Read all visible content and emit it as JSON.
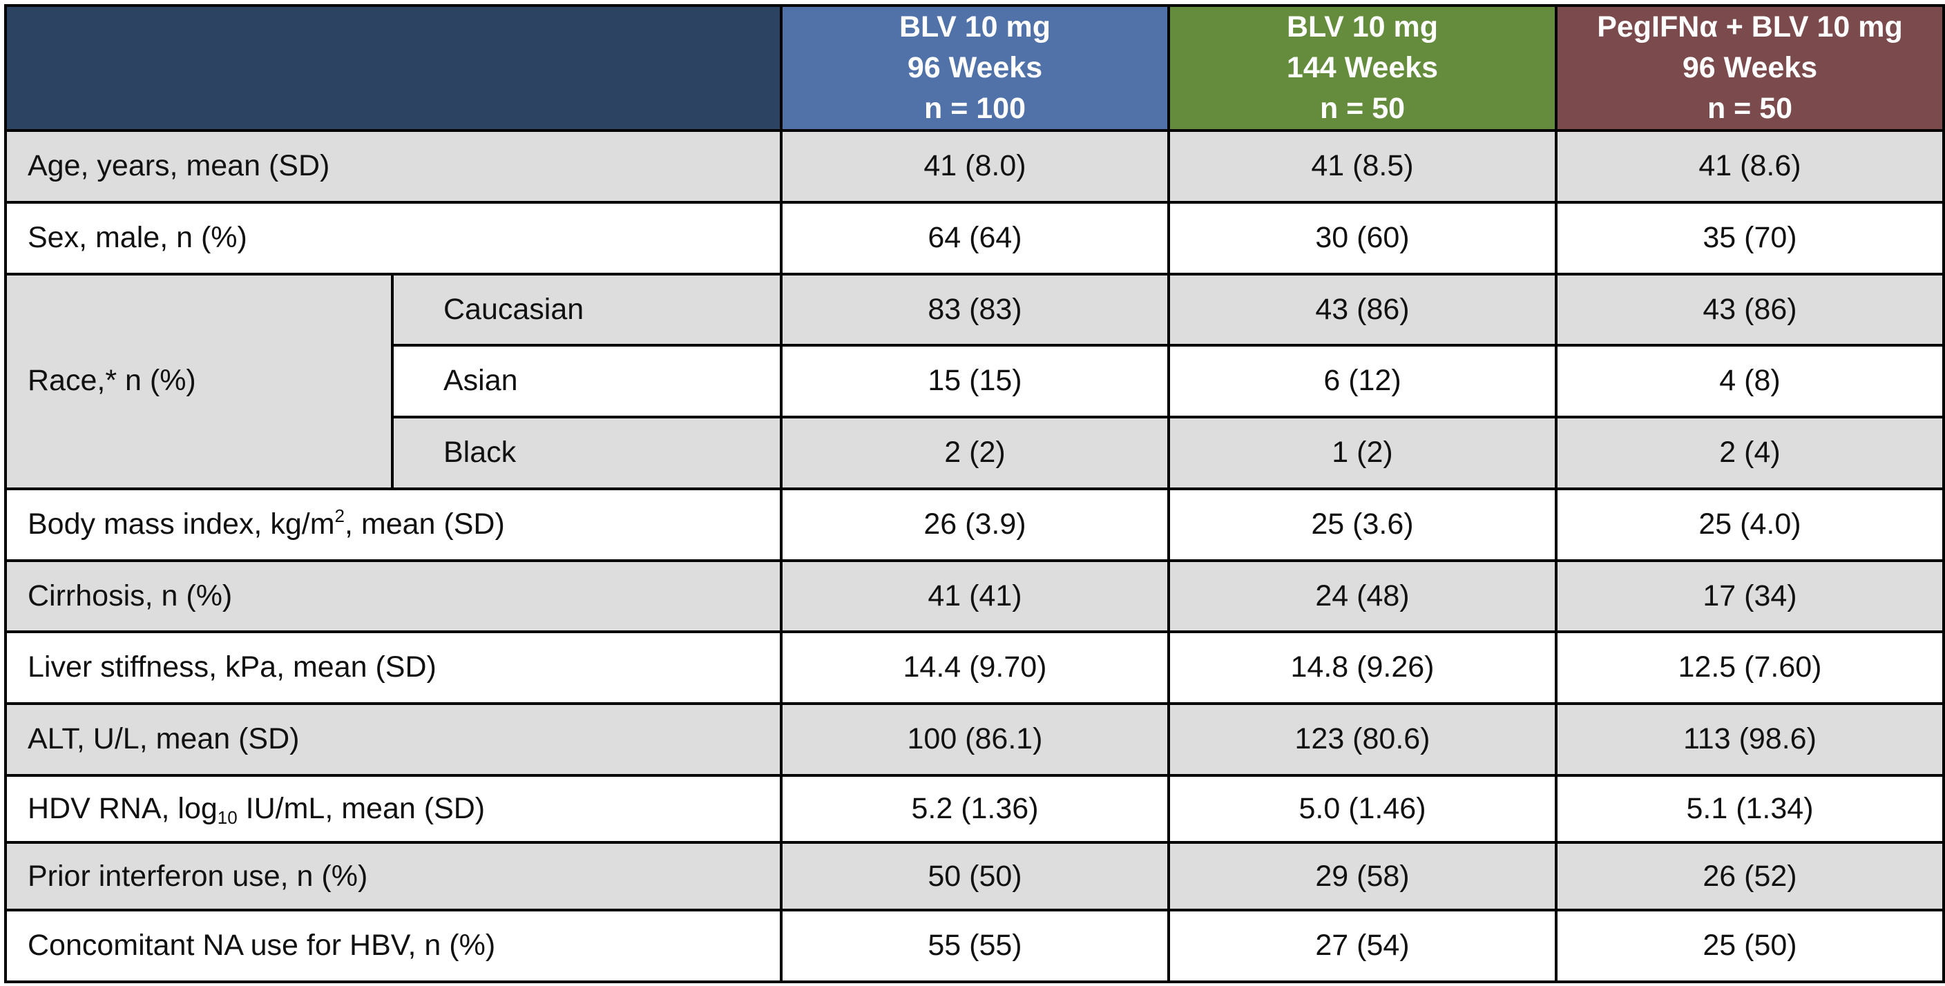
{
  "header": {
    "columns": [
      {
        "line1": "BLV 10 mg",
        "line2": "96 Weeks",
        "line3": "n = 100"
      },
      {
        "line1": "BLV 10 mg",
        "line2": "144 Weeks",
        "line3": "n = 50"
      },
      {
        "line1": "PegIFNα + BLV 10 mg",
        "line2": "96 Weeks",
        "line3": "n = 50"
      }
    ]
  },
  "rows": {
    "age": {
      "label": "Age, years, mean (SD)",
      "values": [
        "41 (8.0)",
        "41 (8.5)",
        "41 (8.6)"
      ]
    },
    "sex": {
      "label": "Sex, male, n (%)",
      "values": [
        "64 (64)",
        "30 (60)",
        "35 (70)"
      ]
    },
    "race": {
      "label": "Race,* n (%)",
      "sub": [
        {
          "label": "Caucasian",
          "values": [
            "83 (83)",
            "43 (86)",
            "43 (86)"
          ]
        },
        {
          "label": "Asian",
          "values": [
            "15 (15)",
            "6 (12)",
            "4 (8)"
          ]
        },
        {
          "label": "Black",
          "values": [
            "2 (2)",
            "1 (2)",
            "2 (4)"
          ]
        }
      ]
    },
    "bmi": {
      "label_pre": "Body mass index, kg/m",
      "label_sup": "2",
      "label_post": ", mean (SD)",
      "values": [
        "26 (3.9)",
        "25 (3.6)",
        "25 (4.0)"
      ]
    },
    "cirrhosis": {
      "label": "Cirrhosis, n (%)",
      "values": [
        "41 (41)",
        "24 (48)",
        "17 (34)"
      ]
    },
    "liver": {
      "label": "Liver stiffness, kPa, mean (SD)",
      "values": [
        "14.4 (9.70)",
        "14.8 (9.26)",
        "12.5 (7.60)"
      ]
    },
    "alt": {
      "label": "ALT, U/L, mean (SD)",
      "values": [
        "100 (86.1)",
        "123 (80.6)",
        "113 (98.6)"
      ]
    },
    "hdv": {
      "label_pre": "HDV RNA, log",
      "label_sub": "10",
      "label_post": " IU/mL, mean (SD)",
      "values": [
        "5.2 (1.36)",
        "5.0 (1.46)",
        "5.1 (1.34)"
      ]
    },
    "interferon": {
      "label": "Prior interferon use, n (%)",
      "values": [
        "50 (50)",
        "29 (58)",
        "26 (52)"
      ]
    },
    "na": {
      "label": "Concomitant NA use for HBV, n (%)",
      "values": [
        "55 (55)",
        "27 (54)",
        "25 (50)"
      ]
    }
  },
  "colors": {
    "corner": "#2c4361",
    "col1": "#5072a9",
    "col2": "#648c3c",
    "col3": "#7a4a4d",
    "band": "#dcdddc"
  }
}
